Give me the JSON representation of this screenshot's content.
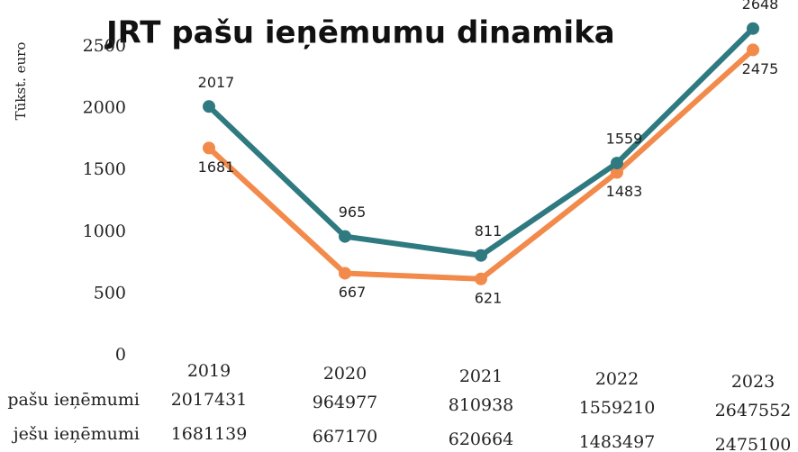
{
  "chart_data": {
    "type": "line",
    "title": "JRT pašu ieņēmumu dinamika",
    "y_label": "Tūkst. euro",
    "categories": [
      "2019",
      "2020",
      "2021",
      "2022",
      "2023"
    ],
    "series": [
      {
        "name": "pašu ieņēmumi",
        "color": "#2f7a80",
        "values": [
          2017,
          965,
          811,
          1559,
          2648
        ]
      },
      {
        "name": "ješu ieņēmumi",
        "color": "#f28a4b",
        "values": [
          1681,
          667,
          621,
          1483,
          2475
        ]
      }
    ],
    "ylim": [
      0,
      2500
    ],
    "yticks": [
      0,
      500,
      1000,
      1500,
      2000,
      2500
    ],
    "grid": false,
    "table": {
      "rows": [
        {
          "label": "pašu ieņēmumi",
          "values": [
            "2017431",
            "964977",
            "810938",
            "1559210",
            "2647552"
          ]
        },
        {
          "label": "ješu ieņēmumi",
          "values": [
            "1681139",
            "667170",
            "620664",
            "1483497",
            "2475100"
          ]
        }
      ]
    }
  }
}
